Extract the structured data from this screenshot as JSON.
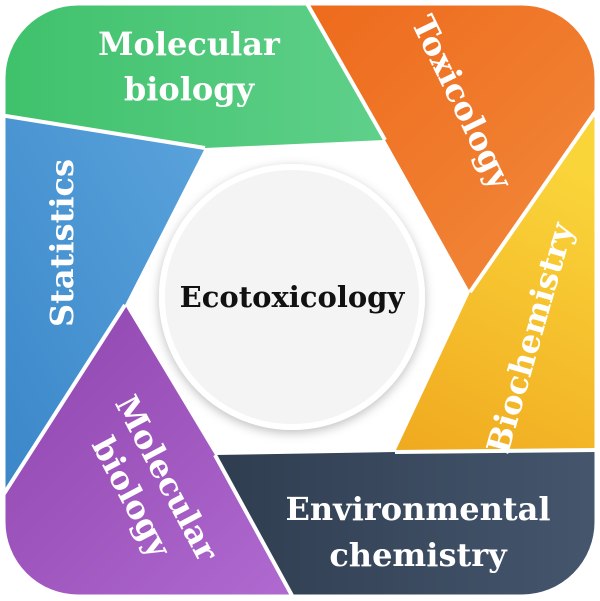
{
  "center": {
    "label": "Ecotoxicology",
    "fill": "#f4f4f4"
  },
  "segments": [
    {
      "label_lines": [
        "Molecular",
        "biology"
      ],
      "color_start": "#3fc16b",
      "color_end": "#5fd08a"
    },
    {
      "label_lines": [
        "Toxicology"
      ],
      "color_start": "#ee6a1c",
      "color_end": "#f28a3c"
    },
    {
      "label_lines": [
        "Biochemistry"
      ],
      "color_start": "#f0a91f",
      "color_end": "#fad53a"
    },
    {
      "label_lines": [
        "Environmental",
        "chemistry"
      ],
      "color_start": "#2f3d50",
      "color_end": "#45566d"
    },
    {
      "label_lines": [
        "Molecular",
        "biology"
      ],
      "color_start": "#8e44ad",
      "color_end": "#b06ad0"
    },
    {
      "label_lines": [
        "Statistics"
      ],
      "color_start": "#3a86c8",
      "color_end": "#5aa3dc"
    }
  ]
}
